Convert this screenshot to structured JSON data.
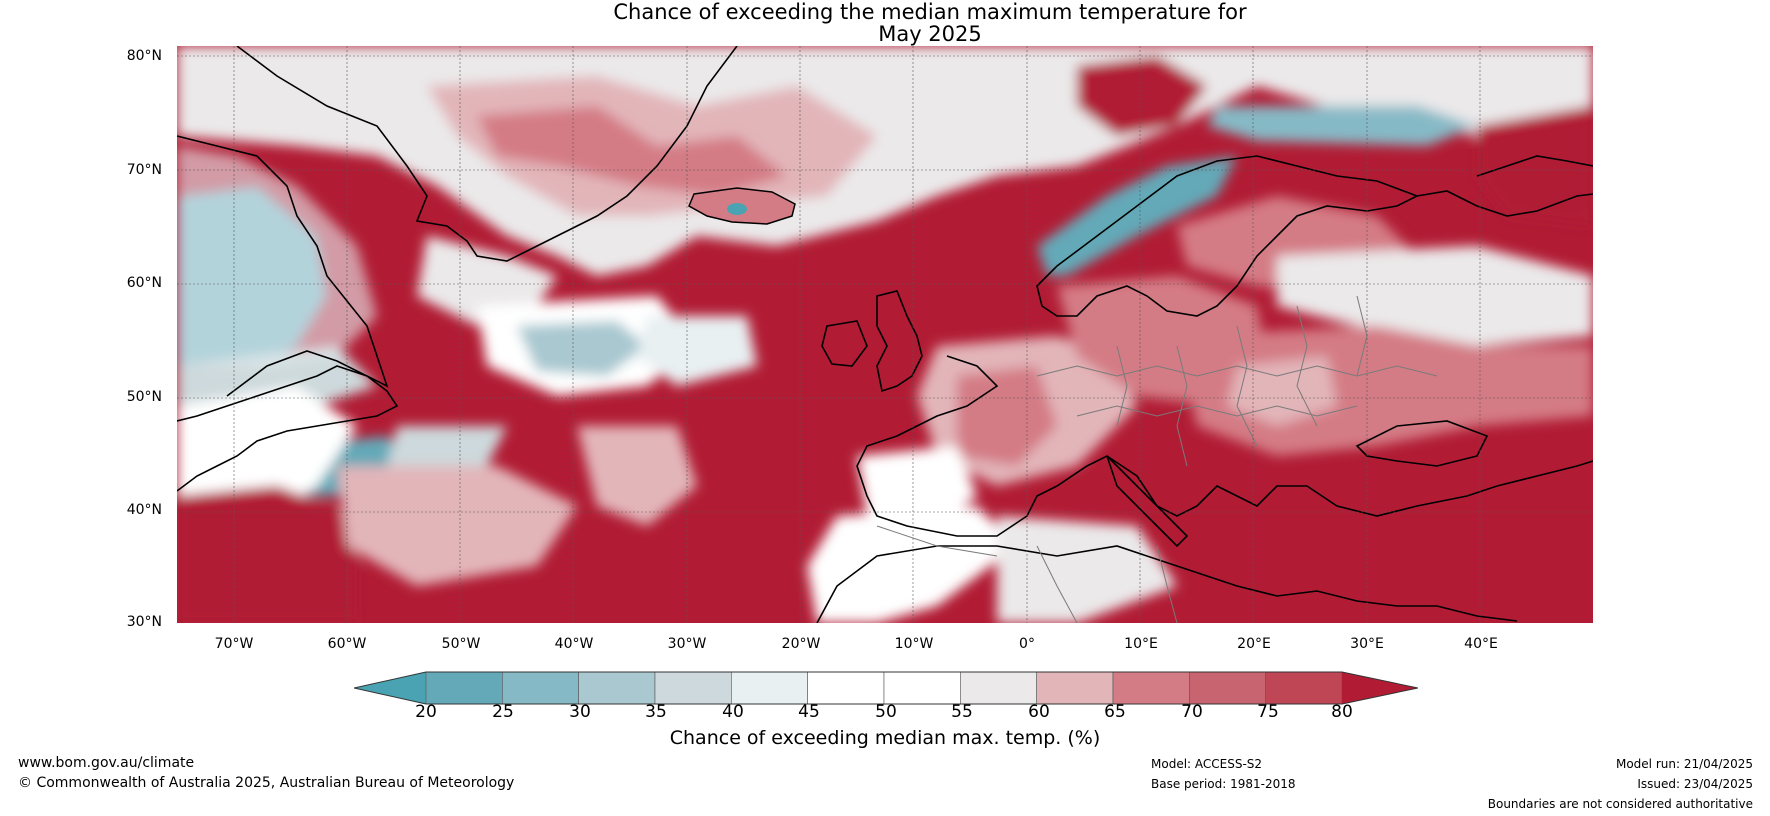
{
  "title": {
    "line1": "Chance of exceeding the median maximum temperature for",
    "line2": "May 2025"
  },
  "axes": {
    "lat_labels": [
      "80°N",
      "70°N",
      "60°N",
      "50°N",
      "40°N",
      "30°N"
    ],
    "lon_labels": [
      "70°W",
      "60°W",
      "50°W",
      "40°W",
      "30°W",
      "20°W",
      "10°W",
      "0°",
      "10°E",
      "20°E",
      "30°E",
      "40°E"
    ]
  },
  "colorbar": {
    "ticks": [
      "20",
      "25",
      "30",
      "35",
      "40",
      "45",
      "50",
      "55",
      "60",
      "65",
      "70",
      "75",
      "80"
    ],
    "label": "Chance of exceeding median max. temp. (%)",
    "colors": {
      "below20": "#4aa3b3",
      "b20_25": "#64a9b8",
      "b25_30": "#86b9c6",
      "b30_35": "#a9c8d0",
      "b35_40": "#cdd9dc",
      "b40_45": "#e8f0f2",
      "b45_50": "#ffffff",
      "b50_55": "#ffffff",
      "b55_60": "#ebe9ea",
      "b60_65": "#e2b5b9",
      "b65_70": "#d47c85",
      "b70_75": "#c76470",
      "b75_80": "#bf4655",
      "above80": "#b11c34"
    }
  },
  "footer": {
    "website": "www.bom.gov.au/climate",
    "copyright": "© Commonwealth of Australia 2025, Australian Bureau of Meteorology",
    "model": "Model: ACCESS-S2",
    "base_period": "Base period: 1981-2018",
    "model_run": "Model run: 21/04/2025",
    "issued": "Issued: 23/04/2025",
    "disclaimer": "Boundaries are not considered authoritative"
  }
}
